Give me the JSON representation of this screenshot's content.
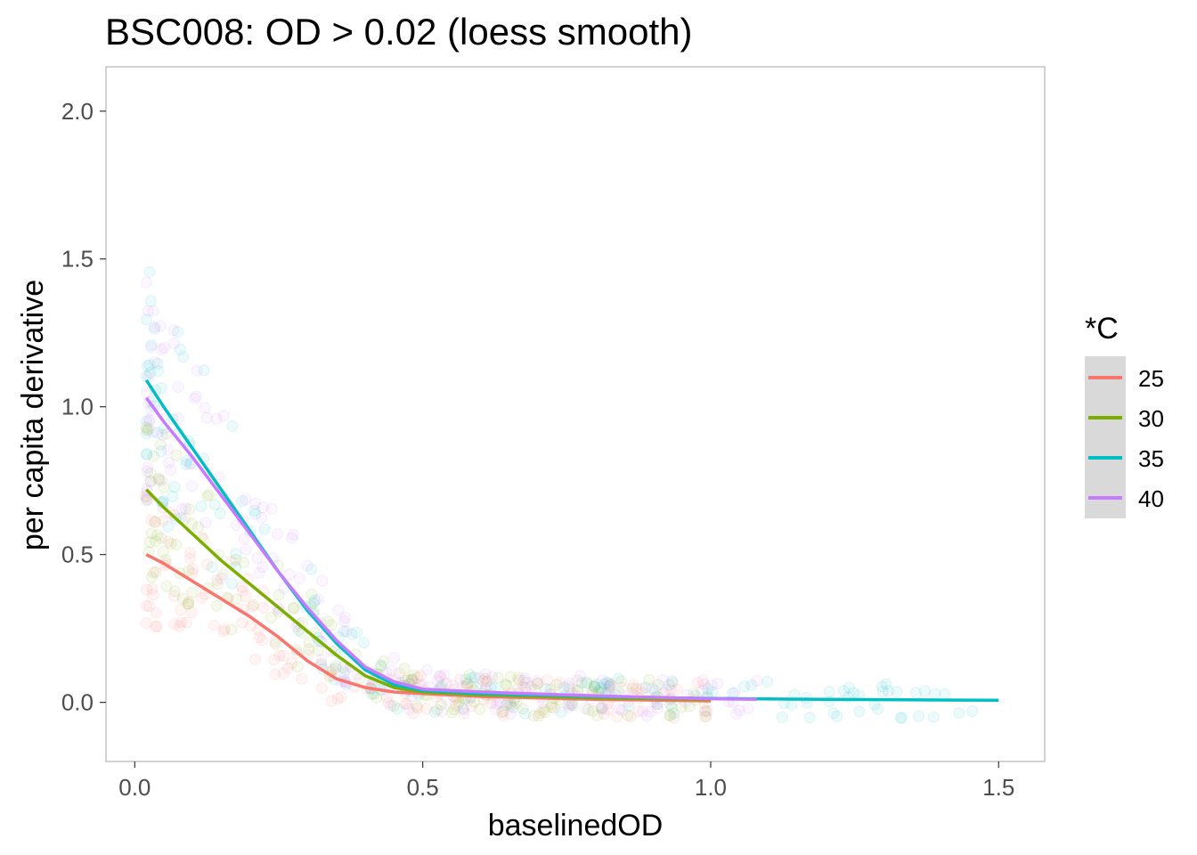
{
  "chart_data": {
    "type": "scatter",
    "title": "BSC008: OD > 0.02 (loess smooth)",
    "xlabel": "baselinedOD",
    "ylabel": "per capita derivative",
    "xlim": [
      -0.05,
      1.58
    ],
    "ylim": [
      -0.2,
      2.15
    ],
    "x_ticks": [
      0.0,
      0.5,
      1.0,
      1.5
    ],
    "x_tick_labels": [
      "0.0",
      "0.5",
      "1.0",
      "1.5"
    ],
    "y_ticks": [
      0.0,
      0.5,
      1.0,
      1.5,
      2.0
    ],
    "y_tick_labels": [
      "0.0",
      "0.5",
      "1.0",
      "1.5",
      "2.0"
    ],
    "grid": false,
    "legend": {
      "title": "*C",
      "placement": "right",
      "entries": [
        "25",
        "30",
        "35",
        "40"
      ]
    },
    "series": [
      {
        "name": "25",
        "color": "#F8766D",
        "x": [
          0.02,
          0.05,
          0.1,
          0.15,
          0.2,
          0.25,
          0.3,
          0.35,
          0.4,
          0.45,
          0.5,
          0.6,
          0.8,
          1.0
        ],
        "values": [
          0.5,
          0.47,
          0.41,
          0.35,
          0.29,
          0.22,
          0.14,
          0.08,
          0.05,
          0.035,
          0.03,
          0.02,
          0.01,
          0.005
        ]
      },
      {
        "name": "30",
        "color": "#7CAE00",
        "x": [
          0.02,
          0.05,
          0.1,
          0.15,
          0.2,
          0.25,
          0.3,
          0.35,
          0.4,
          0.45,
          0.5,
          0.6,
          0.8,
          1.0
        ],
        "values": [
          0.72,
          0.66,
          0.57,
          0.48,
          0.4,
          0.32,
          0.24,
          0.16,
          0.09,
          0.05,
          0.035,
          0.025,
          0.015,
          0.01
        ]
      },
      {
        "name": "35",
        "color": "#00BFC4",
        "x": [
          0.02,
          0.05,
          0.1,
          0.15,
          0.2,
          0.25,
          0.3,
          0.35,
          0.4,
          0.45,
          0.5,
          0.6,
          0.8,
          1.0,
          1.2,
          1.4,
          1.5
        ],
        "values": [
          1.09,
          1.0,
          0.86,
          0.72,
          0.58,
          0.44,
          0.31,
          0.2,
          0.11,
          0.06,
          0.04,
          0.03,
          0.02,
          0.013,
          0.01,
          0.008,
          0.007
        ]
      },
      {
        "name": "40",
        "color": "#C77CFF",
        "x": [
          0.02,
          0.05,
          0.1,
          0.15,
          0.2,
          0.25,
          0.3,
          0.35,
          0.4,
          0.45,
          0.5,
          0.6,
          0.8,
          1.0,
          1.08
        ],
        "values": [
          1.03,
          0.95,
          0.83,
          0.7,
          0.57,
          0.44,
          0.32,
          0.21,
          0.12,
          0.07,
          0.045,
          0.035,
          0.022,
          0.012,
          0.01
        ]
      }
    ]
  }
}
